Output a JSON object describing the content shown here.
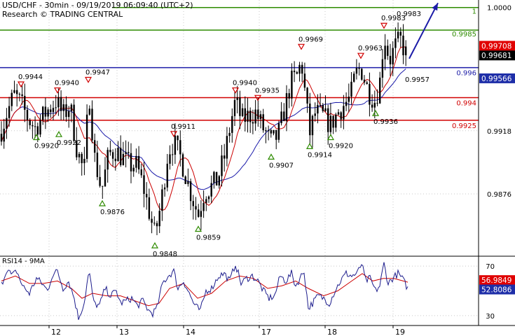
{
  "header": {
    "line1": "USD/CHF - 30min - 09/19/2019 06:09:40 (UTC+2)",
    "line2": "Research © TRADING CENTRAL"
  },
  "colors": {
    "candle": "#000000",
    "ma_fast": "#cc0000",
    "ma_slow": "#1a1aaa",
    "resistance_green": "#2e8b00",
    "support_red": "#d10000",
    "pivot_blue": "#1c1ca8",
    "arrow": "#1c1ca8",
    "rsi_line": "#1c1c8c",
    "rsi_ma": "#cc0000",
    "grid": "#c8c8c8",
    "label_price_bg": "#000000",
    "label_ma_fast_bg": "#e00000",
    "label_ma_slow_bg": "#1e2ea8",
    "label_rsi_bg": "#e00000",
    "label_rsi_ma_bg": "#1e2ea8"
  },
  "chart_data": [
    {
      "type": "candlestick",
      "symbol": "USD/CHF",
      "timeframe": "30min",
      "ylim": [
        0.9835,
        1.0005
      ],
      "x_ticks": [
        "12",
        "13",
        "14",
        "17",
        "18",
        "19"
      ],
      "y_ticks": [
        1.0,
        0.9918,
        0.9876
      ],
      "price_path": [
        [
          0,
          0.9916
        ],
        [
          10,
          0.993
        ],
        [
          20,
          0.9942
        ],
        [
          30,
          0.9936
        ],
        [
          40,
          0.9926
        ],
        [
          50,
          0.992
        ],
        [
          65,
          0.993
        ],
        [
          80,
          0.9938
        ],
        [
          90,
          0.9928
        ],
        [
          100,
          0.9935
        ],
        [
          110,
          0.9905
        ],
        [
          120,
          0.989
        ],
        [
          127,
          0.9945
        ],
        [
          135,
          0.99
        ],
        [
          145,
          0.9878
        ],
        [
          155,
          0.9902
        ],
        [
          165,
          0.9905
        ],
        [
          175,
          0.99
        ],
        [
          185,
          0.9895
        ],
        [
          195,
          0.9895
        ],
        [
          205,
          0.988
        ],
        [
          215,
          0.986
        ],
        [
          221,
          0.9848
        ],
        [
          230,
          0.987
        ],
        [
          240,
          0.9905
        ],
        [
          248,
          0.991
        ],
        [
          258,
          0.99
        ],
        [
          270,
          0.988
        ],
        [
          283,
          0.9862
        ],
        [
          292,
          0.9878
        ],
        [
          300,
          0.988
        ],
        [
          310,
          0.9885
        ],
        [
          320,
          0.99
        ],
        [
          330,
          0.9925
        ],
        [
          336,
          0.9938
        ],
        [
          345,
          0.9925
        ],
        [
          355,
          0.9928
        ],
        [
          365,
          0.993
        ],
        [
          375,
          0.992
        ],
        [
          387,
          0.991
        ],
        [
          397,
          0.9915
        ],
        [
          405,
          0.993
        ],
        [
          415,
          0.995
        ],
        [
          425,
          0.9955
        ],
        [
          430,
          0.9965
        ],
        [
          436,
          0.994
        ],
        [
          442,
          0.9916
        ],
        [
          450,
          0.993
        ],
        [
          460,
          0.9928
        ],
        [
          472,
          0.9922
        ],
        [
          482,
          0.993
        ],
        [
          492,
          0.9936
        ],
        [
          500,
          0.994
        ],
        [
          507,
          0.9955
        ],
        [
          515,
          0.996
        ],
        [
          525,
          0.9945
        ],
        [
          535,
          0.9938
        ],
        [
          542,
          0.995
        ],
        [
          548,
          0.9982
        ],
        [
          556,
          0.9965
        ],
        [
          565,
          0.9975
        ],
        [
          572,
          0.9978
        ],
        [
          580,
          0.9968
        ]
      ],
      "moving_averages": [
        {
          "name": "",
          "color_key": "ma_fast",
          "last_value": 0.99708
        },
        {
          "name": "",
          "color_key": "ma_slow",
          "last_value": 0.99566
        }
      ],
      "last_price": 0.99681,
      "levels": [
        {
          "value": 1.0,
          "label": "1",
          "color_key": "resistance_green"
        },
        {
          "value": 0.9985,
          "label": "0.9985",
          "color_key": "resistance_green"
        },
        {
          "value": 0.996,
          "label": "0.996",
          "color_key": "pivot_blue"
        },
        {
          "value": 0.994,
          "label": "0.994",
          "color_key": "support_red"
        },
        {
          "value": 0.9925,
          "label": "0.9925",
          "color_key": "support_red"
        }
      ],
      "price_labels": [
        {
          "value": 0.99708,
          "text": "0.99708",
          "color_key": "label_ma_fast_bg"
        },
        {
          "value": 0.99681,
          "text": "0.99681",
          "color_key": "label_price_bg"
        },
        {
          "value": 0.99566,
          "text": "0.99566",
          "color_key": "label_ma_slow_bg"
        }
      ],
      "swing_markers": [
        {
          "kind": "high",
          "value": 0.9944,
          "text": "0.9944"
        },
        {
          "kind": "low",
          "value": 0.992,
          "text": "0.9920"
        },
        {
          "kind": "high",
          "value": 0.994,
          "text": "0.9940"
        },
        {
          "kind": "low",
          "value": 0.9922,
          "text": "0.9922"
        },
        {
          "kind": "high",
          "value": 0.9947,
          "text": "0.9947"
        },
        {
          "kind": "low",
          "value": 0.9876,
          "text": "0.9876"
        },
        {
          "kind": "low",
          "value": 0.9848,
          "text": "0.9848"
        },
        {
          "kind": "high",
          "value": 0.9911,
          "text": "0.9911"
        },
        {
          "kind": "low",
          "value": 0.9859,
          "text": "0.9859"
        },
        {
          "kind": "high",
          "value": 0.994,
          "text": "0.9940"
        },
        {
          "kind": "high",
          "value": 0.9935,
          "text": "0.9935"
        },
        {
          "kind": "low",
          "value": 0.9907,
          "text": "0.9907"
        },
        {
          "kind": "high",
          "value": 0.9969,
          "text": "0.9969"
        },
        {
          "kind": "low",
          "value": 0.9914,
          "text": "0.9914"
        },
        {
          "kind": "low",
          "value": 0.992,
          "text": "0.9920"
        },
        {
          "kind": "high",
          "value": 0.9963,
          "text": "0.9963"
        },
        {
          "kind": "low",
          "value": 0.9936,
          "text": "0.9936"
        },
        {
          "kind": "high",
          "value": 0.9983,
          "text": "0.9983"
        }
      ],
      "extra_labels": [
        {
          "value": 0.9957,
          "text": "0.9957"
        },
        {
          "value": 0.9983,
          "text": "0.9983"
        }
      ],
      "projection_arrow": {
        "from": 0.9966,
        "to": 1.0003
      }
    },
    {
      "type": "line",
      "title": "RSI14 - 9MA",
      "ylim": [
        22,
        78
      ],
      "y_ticks": [
        70,
        30
      ],
      "rsi_path": [
        [
          0,
          55
        ],
        [
          8,
          68
        ],
        [
          15,
          62
        ],
        [
          22,
          66
        ],
        [
          30,
          54
        ],
        [
          40,
          48
        ],
        [
          50,
          60
        ],
        [
          58,
          56
        ],
        [
          66,
          50
        ],
        [
          72,
          62
        ],
        [
          80,
          66
        ],
        [
          88,
          52
        ],
        [
          96,
          58
        ],
        [
          104,
          44
        ],
        [
          110,
          28
        ],
        [
          118,
          40
        ],
        [
          125,
          66
        ],
        [
          132,
          40
        ],
        [
          140,
          38
        ],
        [
          148,
          52
        ],
        [
          156,
          46
        ],
        [
          164,
          50
        ],
        [
          170,
          40
        ],
        [
          178,
          42
        ],
        [
          186,
          44
        ],
        [
          194,
          38
        ],
        [
          202,
          42
        ],
        [
          210,
          34
        ],
        [
          216,
          32
        ],
        [
          222,
          36
        ],
        [
          230,
          56
        ],
        [
          238,
          62
        ],
        [
          246,
          66
        ],
        [
          252,
          52
        ],
        [
          260,
          58
        ],
        [
          268,
          48
        ],
        [
          276,
          38
        ],
        [
          284,
          34
        ],
        [
          292,
          50
        ],
        [
          300,
          52
        ],
        [
          310,
          62
        ],
        [
          318,
          64
        ],
        [
          326,
          58
        ],
        [
          334,
          72
        ],
        [
          342,
          56
        ],
        [
          350,
          60
        ],
        [
          358,
          62
        ],
        [
          366,
          58
        ],
        [
          374,
          50
        ],
        [
          382,
          44
        ],
        [
          390,
          46
        ],
        [
          398,
          62
        ],
        [
          406,
          58
        ],
        [
          414,
          64
        ],
        [
          420,
          54
        ],
        [
          426,
          60
        ],
        [
          432,
          66
        ],
        [
          438,
          36
        ],
        [
          444,
          40
        ],
        [
          452,
          46
        ],
        [
          460,
          44
        ],
        [
          468,
          40
        ],
        [
          476,
          50
        ],
        [
          484,
          58
        ],
        [
          492,
          64
        ],
        [
          500,
          62
        ],
        [
          508,
          64
        ],
        [
          514,
          72
        ],
        [
          520,
          58
        ],
        [
          526,
          60
        ],
        [
          534,
          50
        ],
        [
          540,
          54
        ],
        [
          546,
          72
        ],
        [
          552,
          56
        ],
        [
          558,
          60
        ],
        [
          566,
          64
        ],
        [
          572,
          60
        ],
        [
          580,
          52
        ]
      ],
      "rsi_ma_path": [
        [
          0,
          58
        ],
        [
          20,
          62
        ],
        [
          40,
          56
        ],
        [
          60,
          56
        ],
        [
          80,
          58
        ],
        [
          100,
          52
        ],
        [
          115,
          44
        ],
        [
          130,
          48
        ],
        [
          150,
          46
        ],
        [
          170,
          46
        ],
        [
          190,
          42
        ],
        [
          210,
          38
        ],
        [
          225,
          40
        ],
        [
          240,
          52
        ],
        [
          260,
          56
        ],
        [
          280,
          44
        ],
        [
          300,
          48
        ],
        [
          320,
          58
        ],
        [
          340,
          62
        ],
        [
          360,
          60
        ],
        [
          380,
          52
        ],
        [
          400,
          54
        ],
        [
          420,
          58
        ],
        [
          438,
          52
        ],
        [
          460,
          46
        ],
        [
          480,
          50
        ],
        [
          500,
          58
        ],
        [
          515,
          64
        ],
        [
          530,
          58
        ],
        [
          545,
          60
        ],
        [
          560,
          60
        ],
        [
          580,
          57
        ]
      ],
      "rsi_last": 52.8086,
      "rsi_ma_last": 56.9849,
      "value_labels": [
        {
          "value": 56.9849,
          "text": "56.9849",
          "color_key": "label_rsi_bg"
        },
        {
          "value": 52.8086,
          "text": "52.8086",
          "color_key": "label_rsi_ma_bg"
        }
      ]
    }
  ]
}
